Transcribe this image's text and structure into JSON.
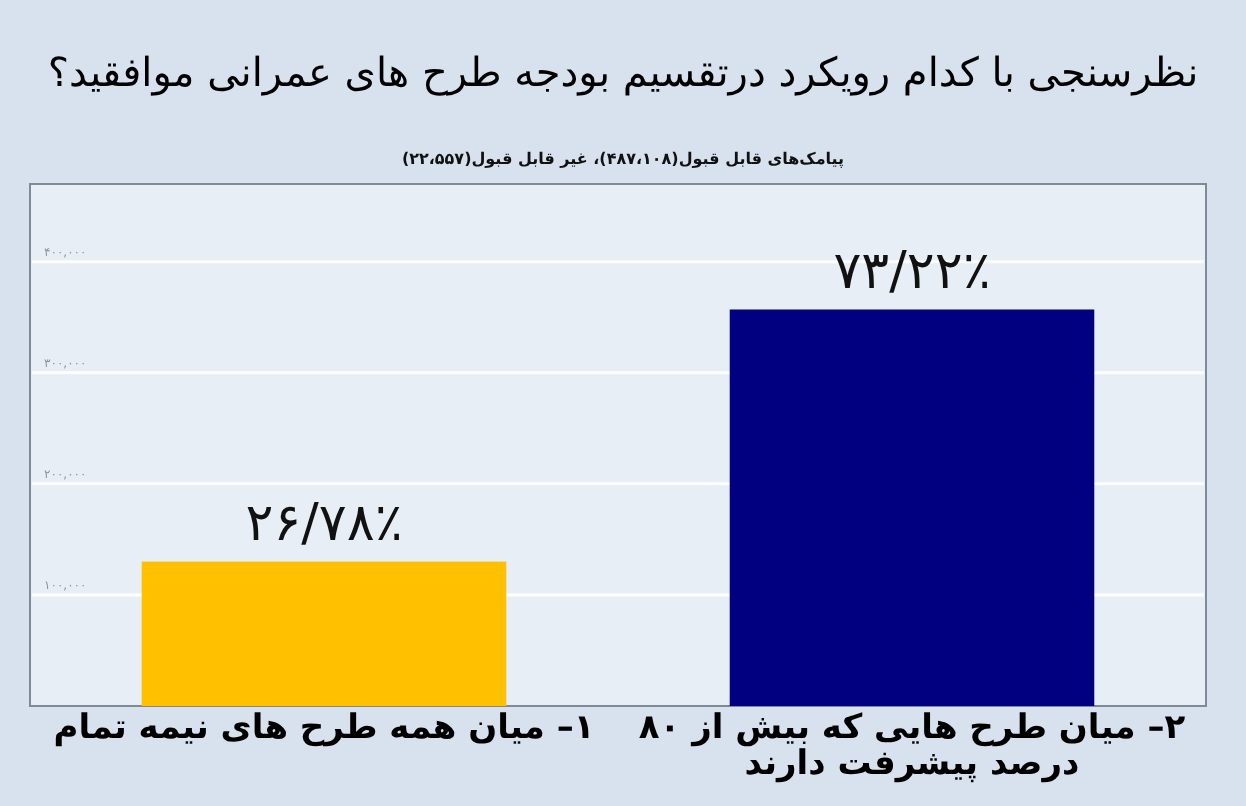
{
  "chart_data": {
    "type": "bar",
    "title": "نظرسنجی با کدام رویکرد درتقسیم بودجه طرح های عمرانی موافقید؟",
    "subtitle": "پیامک‌های قابل قبول(۴۸۷،۱۰۸)، غیر قابل قبول(۲۲،۵۵۷)",
    "categories": [
      "۱– میان همه طرح های نیمه تمام",
      "۲– میان طرح هایی که بیش از ۸۰ درصد پیشرفت دارند"
    ],
    "values": [
      130000,
      357000
    ],
    "colors": [
      "#ffc000",
      "#000080"
    ],
    "value_labels": [
      "۲۶/۷۸٪",
      "۷۳/۲۲٪"
    ],
    "ylim": [
      0,
      470000
    ],
    "yticks": [
      {
        "value": 100000,
        "label": "۱۰۰,۰۰۰"
      },
      {
        "value": 200000,
        "label": "۲۰۰,۰۰۰"
      },
      {
        "value": 300000,
        "label": "۳۰۰,۰۰۰"
      },
      {
        "value": 400000,
        "label": "۴۰۰,۰۰۰"
      }
    ],
    "grid": "y"
  }
}
